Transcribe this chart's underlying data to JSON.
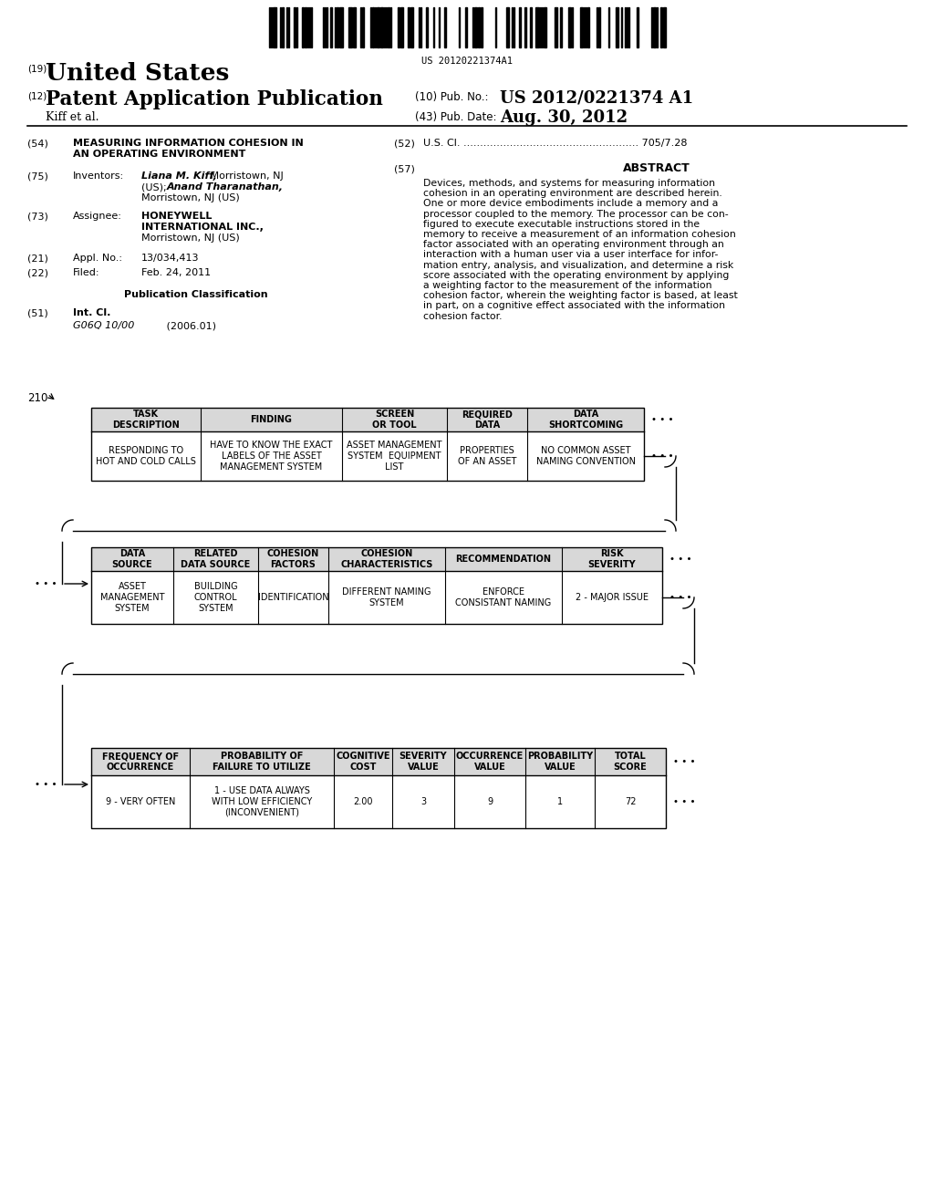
{
  "background_color": "#ffffff",
  "barcode_text": "US 20120221374A1",
  "title_19_text": "United States",
  "title_12_text": "Patent Application Publication",
  "title_10": "(10) Pub. No.:",
  "title_10_val": "US 2012/0221374 A1",
  "author_line": "Kiff et al.",
  "title_43": "(43) Pub. Date:",
  "title_43_val": "Aug. 30, 2012",
  "field57_title": "ABSTRACT",
  "abstract_text": "Devices, methods, and systems for measuring information\ncohesion in an operating environment are described herein.\nOne or more device embodiments include a memory and a\nprocessor coupled to the memory. The processor can be con-\nfigured to execute executable instructions stored in the\nmemory to receive a measurement of an information cohesion\nfactor associated with an operating environment through an\ninteraction with a human user via a user interface for infor-\nmation entry, analysis, and visualization, and determine a risk\nscore associated with the operating environment by applying\na weighting factor to the measurement of the information\ncohesion factor, wherein the weighting factor is based, at least\nin part, on a cognitive effect associated with the information\ncohesion factor.",
  "diagram_label": "210",
  "table1_headers": [
    "TASK\nDESCRIPTION",
    "FINDING",
    "SCREEN\nOR TOOL",
    "REQUIRED\nDATA",
    "DATA\nSHORTCOMING"
  ],
  "table1_row": [
    "RESPONDING TO\nHOT AND COLD CALLS",
    "HAVE TO KNOW THE EXACT\nLABELS OF THE ASSET\nMANAGEMENT SYSTEM",
    "ASSET MANAGEMENT\nSYSTEM  EQUIPMENT\nLIST",
    "PROPERTIES\nOF AN ASSET",
    "NO COMMON ASSET\nNAMING CONVENTION"
  ],
  "table2_headers": [
    "DATA\nSOURCE",
    "RELATED\nDATA SOURCE",
    "COHESION\nFACTORS",
    "COHESION\nCHARACTERISTICS",
    "RECOMMENDATION",
    "RISK\nSEVERITY"
  ],
  "table2_row": [
    "ASSET\nMANAGEMENT\nSYSTEM",
    "BUILDING\nCONTROL\nSYSTEM",
    "IDENTIFICATION",
    "DIFFERENT NAMING\nSYSTEM",
    "ENFORCE\nCONSISTANT NAMING",
    "2 - MAJOR ISSUE"
  ],
  "table3_headers": [
    "FREQUENCY OF\nOCCURRENCE",
    "PROBABILITY OF\nFAILURE TO UTILIZE",
    "COGNITIVE\nCOST",
    "SEVERITY\nVALUE",
    "OCCURRENCE\nVALUE",
    "PROBABILITY\nVALUE",
    "TOTAL\nSCORE"
  ],
  "table3_row": [
    "9 - VERY OFTEN",
    "1 - USE DATA ALWAYS\nWITH LOW EFFICIENCY\n(INCONVENIENT)",
    "2.00",
    "3",
    "9",
    "1",
    "72"
  ]
}
